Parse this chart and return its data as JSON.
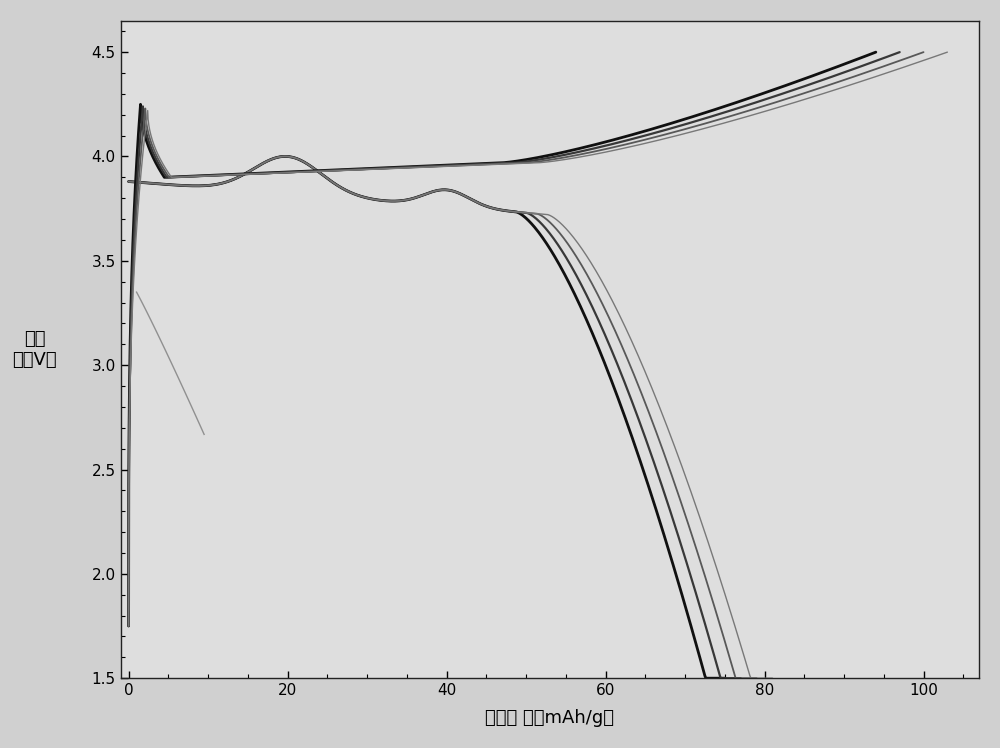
{
  "xlabel": "比容量 ／（mAh/g）",
  "ylabel_1": "电压",
  "ylabel_2": "／（V）",
  "xlim": [
    -1,
    107
  ],
  "ylim": [
    1.5,
    4.65
  ],
  "xticks": [
    0,
    20,
    40,
    60,
    80,
    100
  ],
  "yticks": [
    1.5,
    2.0,
    2.5,
    3.0,
    3.5,
    4.0,
    4.5
  ],
  "fig_bg": "#d0d0d0",
  "plot_bg": "#dedede",
  "discharge_colors": [
    "#101010",
    "#383838",
    "#585858",
    "#787878"
  ],
  "discharge_lws": [
    2.0,
    1.6,
    1.3,
    1.0
  ],
  "charge_colors": [
    "#101010",
    "#383838",
    "#585858",
    "#787878"
  ],
  "charge_lws": [
    2.0,
    1.6,
    1.3,
    1.0
  ],
  "discharge_caps": [
    75,
    77,
    79,
    81
  ],
  "charge_caps": [
    94,
    97,
    100,
    103
  ]
}
